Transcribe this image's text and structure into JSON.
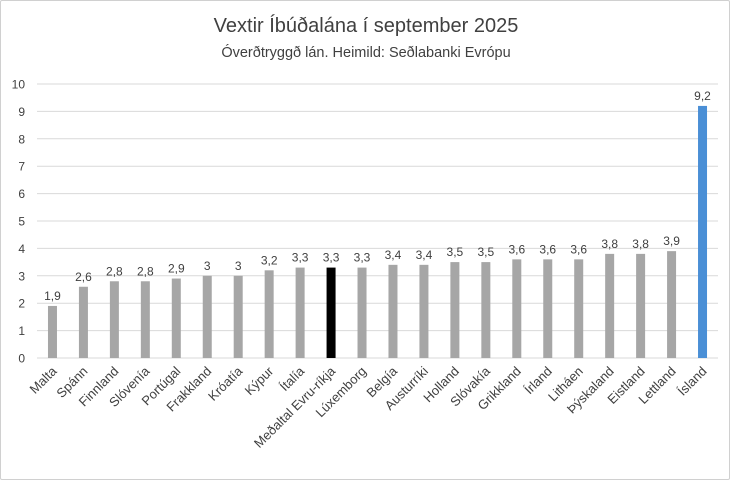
{
  "chart_data": {
    "type": "bar",
    "title": "Vextir Íbúðalána í september 2025",
    "subtitle": "Óverðtryggð lán. Heimild: Seðlabanki Evrópu",
    "xlabel": "",
    "ylabel": "",
    "ylim": [
      0,
      10
    ],
    "yticks": [
      "0",
      "1",
      "2",
      "3",
      "4",
      "5",
      "6",
      "7",
      "8",
      "9",
      "10"
    ],
    "grid": true,
    "legend": "none",
    "categories": [
      "Malta",
      "Spánn",
      "Finnland",
      "Slóvenía",
      "Portúgal",
      "Frakkland",
      "Króatía",
      "Kýpur",
      "Ítalía",
      "Meðaltal Evru-ríkja",
      "Lúxemborg",
      "Belgía",
      "Austurríki",
      "Holland",
      "Slóvakía",
      "Grikkland",
      "Írland",
      "Litháen",
      "Þýskaland",
      "Eistland",
      "Lettland",
      "Ísland"
    ],
    "values": [
      1.9,
      2.6,
      2.8,
      2.8,
      2.9,
      3.0,
      3.0,
      3.2,
      3.3,
      3.3,
      3.3,
      3.4,
      3.4,
      3.5,
      3.5,
      3.6,
      3.6,
      3.6,
      3.8,
      3.8,
      3.9,
      9.2
    ],
    "value_labels": [
      "1,9",
      "2,6",
      "2,8",
      "2,8",
      "2,9",
      "3",
      "3",
      "3,2",
      "3,3",
      "3,3",
      "3,3",
      "3,4",
      "3,4",
      "3,5",
      "3,5",
      "3,6",
      "3,6",
      "3,6",
      "3,8",
      "3,8",
      "3,9",
      "9,2"
    ],
    "colors": {
      "default": "#a6a6a6",
      "highlight_average": "#000000",
      "highlight_iceland": "#4a8fd6",
      "grid": "#d9d9d9",
      "text": "#404040"
    },
    "highlight": {
      "Meðaltal Evru-ríkja": "highlight_average",
      "Ísland": "highlight_iceland"
    }
  }
}
